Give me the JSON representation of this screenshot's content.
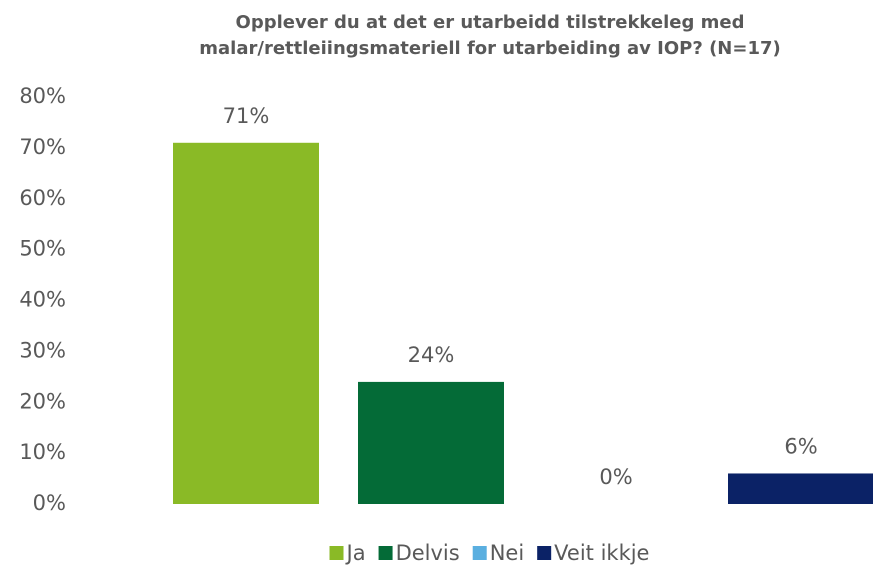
{
  "chart_data": {
    "type": "bar",
    "title": [
      "Opplever du at det er utarbeidd tilstrekkeleg med",
      "malar/rettleiingsmateriell for utarbeiding av IOP? (N=17)"
    ],
    "series": [
      {
        "name": "Ja",
        "color": "#8aba26",
        "values": [
          71
        ],
        "value_labels": [
          "71%"
        ]
      },
      {
        "name": "Delvis",
        "color": "#046b37",
        "values": [
          24
        ],
        "value_labels": [
          "24%"
        ]
      },
      {
        "name": "Nei",
        "color": "#5aafe0",
        "values": [
          0
        ],
        "value_labels": [
          "0%"
        ]
      },
      {
        "name": "Veit ikkje",
        "color": "#0b2266",
        "values": [
          6
        ],
        "value_labels": [
          "6%"
        ]
      }
    ],
    "ylim": [
      0,
      80
    ],
    "yticks": [
      {
        "value": 0,
        "label": "0%"
      },
      {
        "value": 10,
        "label": "10%"
      },
      {
        "value": 20,
        "label": "20%"
      },
      {
        "value": 30,
        "label": "30%"
      },
      {
        "value": 40,
        "label": "40%"
      },
      {
        "value": 50,
        "label": "50%"
      },
      {
        "value": 60,
        "label": "60%"
      },
      {
        "value": 70,
        "label": "70%"
      },
      {
        "value": 80,
        "label": "80%"
      }
    ],
    "legend": "bottom"
  }
}
